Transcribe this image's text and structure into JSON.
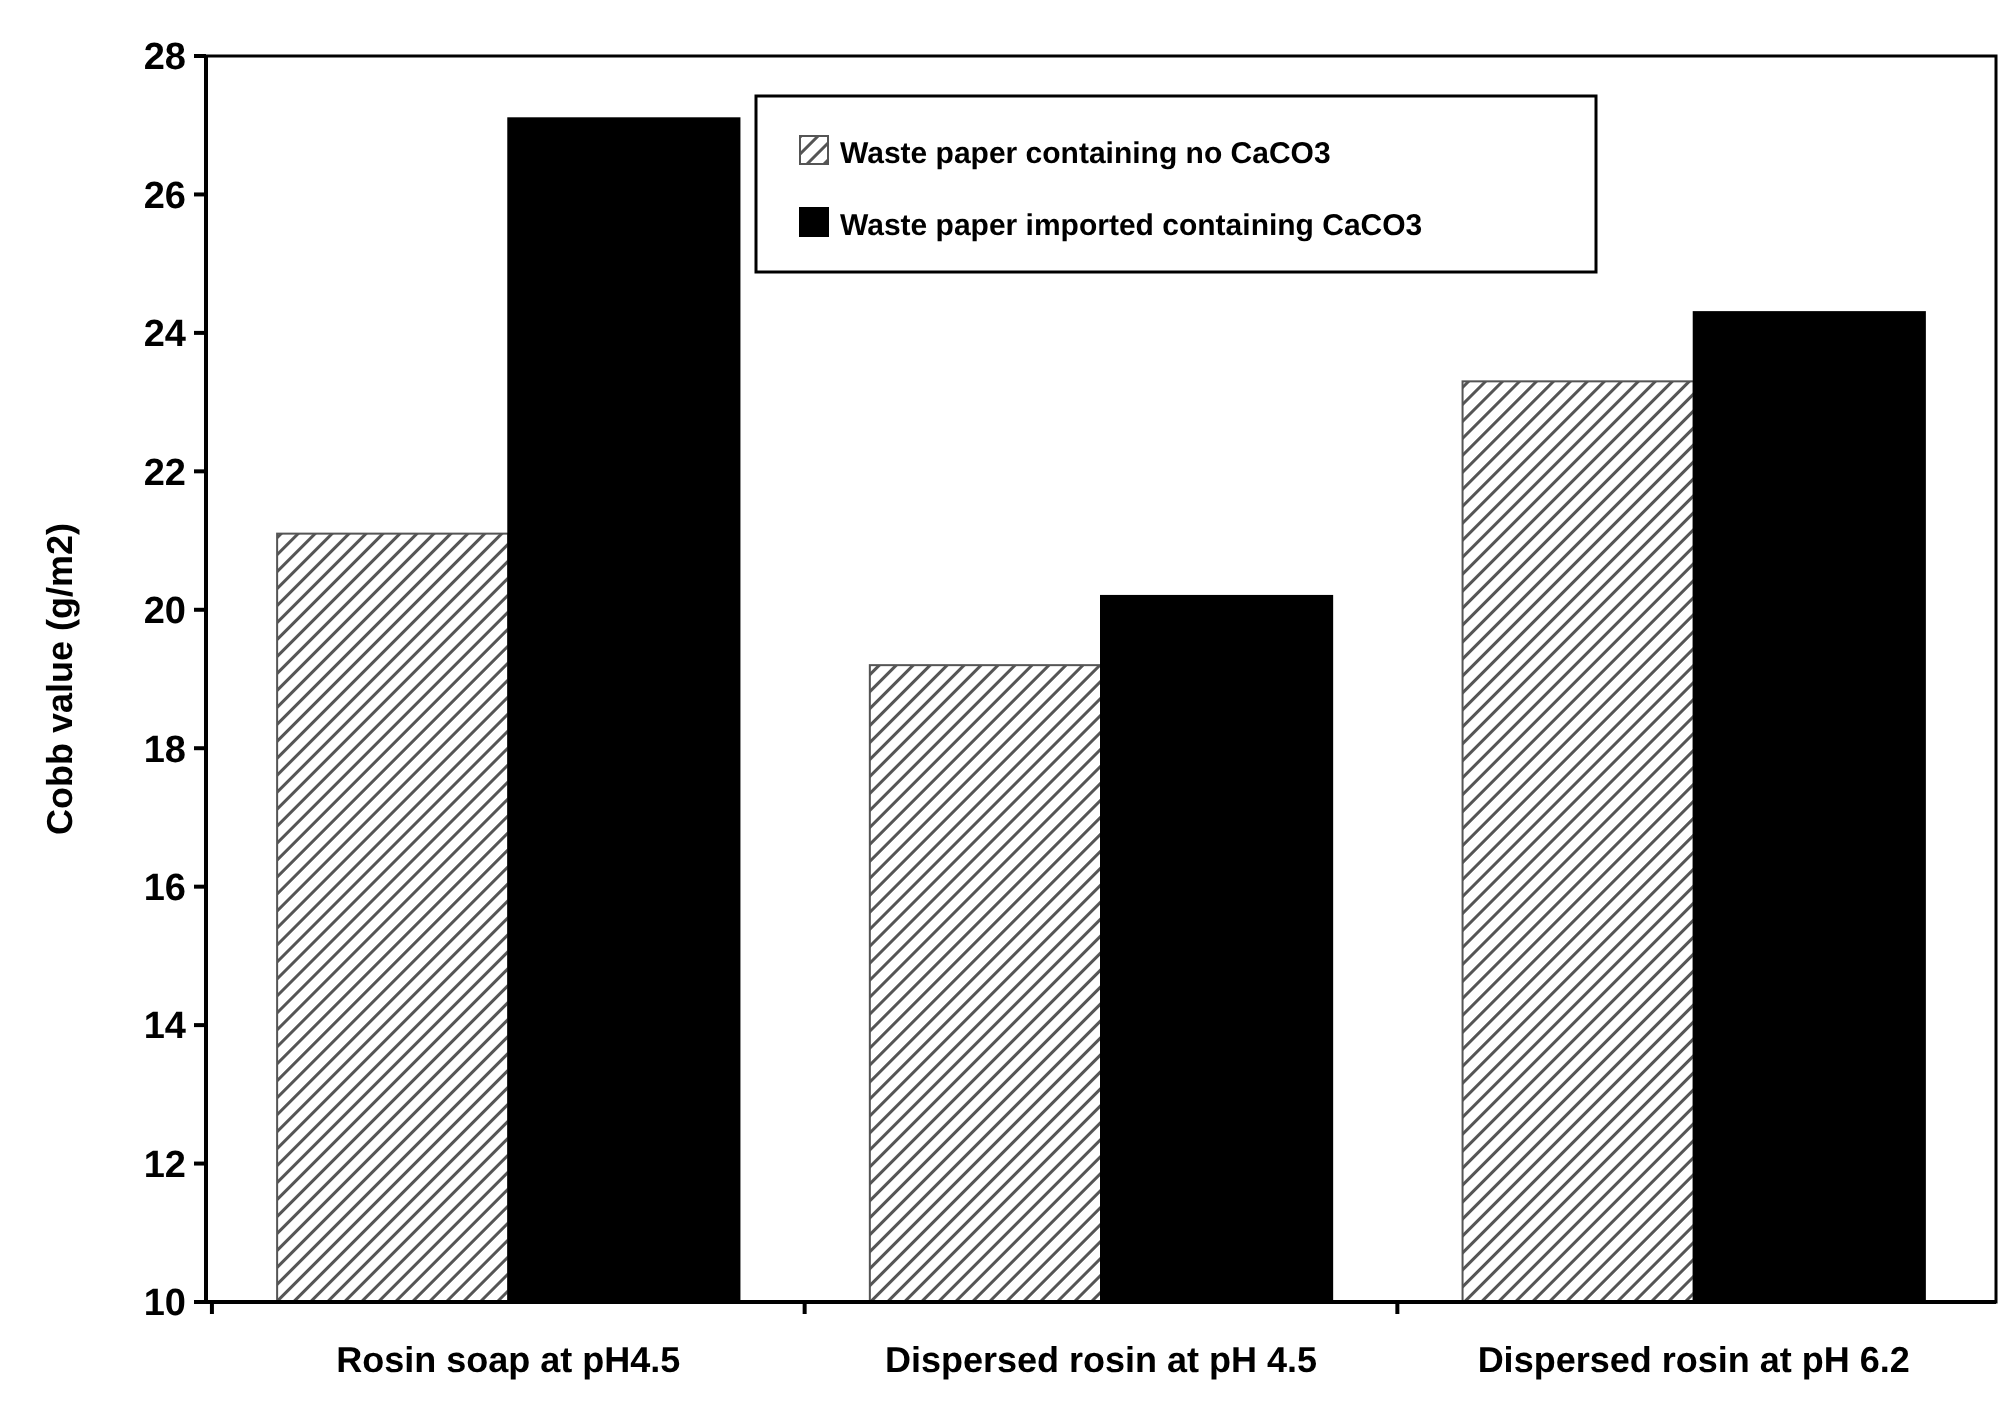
{
  "chart_data": {
    "type": "bar",
    "ylabel": "Cobb value (g/m2)",
    "categories": [
      "Rosin soap at pH4.5",
      "Dispersed rosin at pH 4.5",
      "Dispersed rosin at pH 6.2"
    ],
    "series": [
      {
        "name": "Waste paper containing no CaCO3",
        "color": "#555555",
        "values": [
          21.1,
          19.2,
          23.3
        ]
      },
      {
        "name": "Waste paper imported containing CaCO3",
        "color": "#000000",
        "values": [
          27.1,
          20.2,
          24.3
        ]
      }
    ],
    "ylim": [
      10,
      28
    ],
    "yticks": [
      10,
      12,
      14,
      16,
      18,
      20,
      22,
      24,
      26,
      28
    ],
    "grid": false,
    "legend": "top right"
  }
}
